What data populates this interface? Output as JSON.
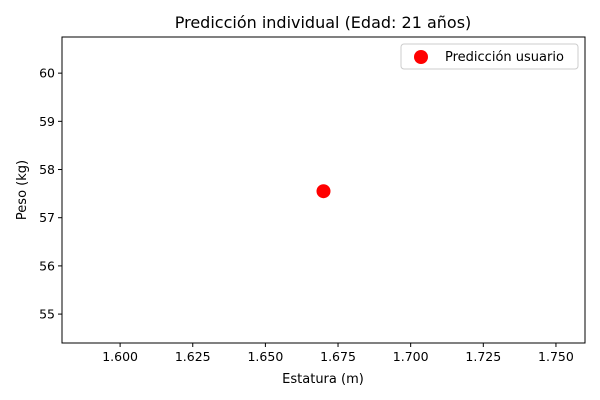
{
  "chart_data": {
    "type": "scatter",
    "title": "Predicción individual (Edad: 21 años)",
    "xlabel": "Estatura (m)",
    "ylabel": "Peso (kg)",
    "xlim": [
      1.58,
      1.76
    ],
    "ylim": [
      54.4,
      60.75
    ],
    "xticks": [
      1.6,
      1.625,
      1.65,
      1.675,
      1.7,
      1.725,
      1.75
    ],
    "xtick_labels": [
      "1.600",
      "1.625",
      "1.650",
      "1.675",
      "1.700",
      "1.725",
      "1.750"
    ],
    "yticks": [
      55,
      56,
      57,
      58,
      59,
      60
    ],
    "ytick_labels": [
      "55",
      "56",
      "57",
      "58",
      "59",
      "60"
    ],
    "grid": false,
    "legend_position": "top-right",
    "series": [
      {
        "name": "Predicción usuario",
        "color": "#ff0000",
        "points": [
          {
            "x": 1.67,
            "y": 57.55
          }
        ]
      }
    ]
  }
}
